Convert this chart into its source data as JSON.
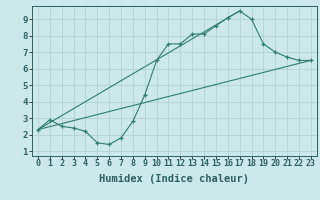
{
  "line1_x": [
    0,
    1,
    2,
    3,
    4,
    5,
    6,
    7,
    8,
    9,
    10,
    11,
    12,
    13,
    14,
    15,
    16,
    17,
    18,
    19,
    20,
    21,
    22,
    23
  ],
  "line1_y": [
    2.3,
    2.9,
    2.5,
    2.4,
    2.2,
    1.5,
    1.4,
    1.8,
    2.8,
    4.4,
    6.5,
    7.5,
    7.5,
    8.1,
    8.1,
    8.6,
    9.1,
    9.5,
    9.0,
    7.5,
    7.0,
    6.7,
    6.5,
    6.5
  ],
  "line2_x": [
    0,
    23
  ],
  "line2_y": [
    2.3,
    6.5
  ],
  "line3_x": [
    0,
    17
  ],
  "line3_y": [
    2.3,
    9.5
  ],
  "color": "#2e7d6e",
  "bg_color": "#cde8e8",
  "grid_color": "#aecece",
  "xlabel": "Humidex (Indice chaleur)",
  "xlim": [
    -0.5,
    23.5
  ],
  "ylim": [
    0.7,
    9.8
  ],
  "xticks": [
    0,
    1,
    2,
    3,
    4,
    5,
    6,
    7,
    8,
    9,
    10,
    11,
    12,
    13,
    14,
    15,
    16,
    17,
    18,
    19,
    20,
    21,
    22,
    23
  ],
  "yticks": [
    1,
    2,
    3,
    4,
    5,
    6,
    7,
    8,
    9
  ],
  "tick_fontsize": 6.0,
  "xlabel_fontsize": 7.5
}
